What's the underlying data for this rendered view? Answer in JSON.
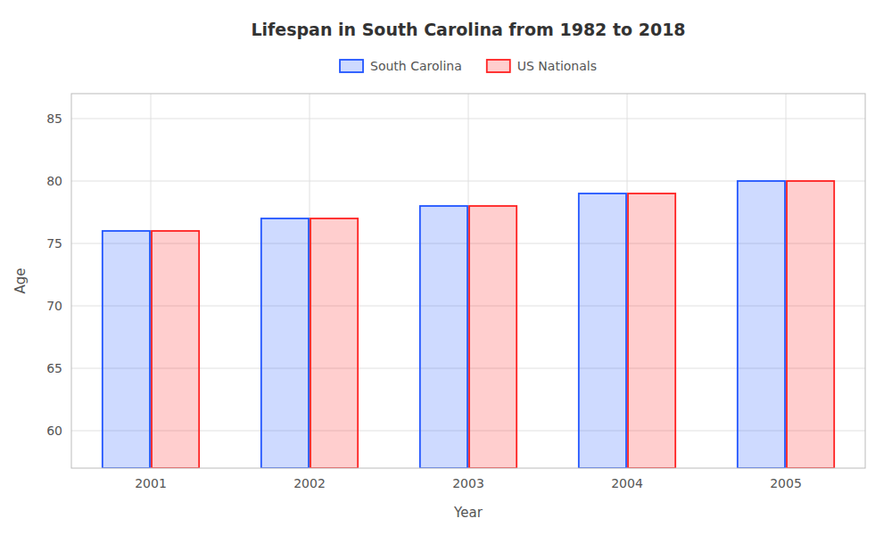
{
  "chart_data": {
    "type": "bar",
    "title": "Lifespan in South Carolina from 1982 to 2018",
    "x_label": "Year",
    "y_label": "Age",
    "categories": [
      "2001",
      "2002",
      "2003",
      "2004",
      "2005"
    ],
    "series": [
      {
        "name": "South Carolina",
        "color": "#2255ff",
        "values": [
          76,
          77,
          78,
          79,
          80
        ]
      },
      {
        "name": "US Nationals",
        "color": "#ff2222",
        "values": [
          76,
          77,
          78,
          79,
          80
        ]
      }
    ],
    "ylim": [
      57,
      87
    ],
    "yticks": [
      60,
      65,
      70,
      75,
      80,
      85
    ],
    "grid": true,
    "legend": "top"
  }
}
